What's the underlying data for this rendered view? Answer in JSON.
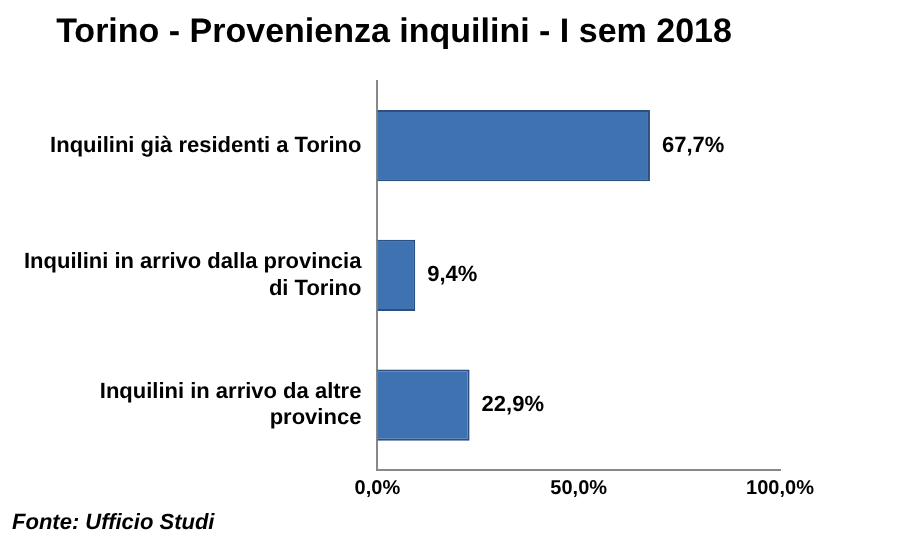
{
  "chart_data": {
    "type": "bar",
    "orientation": "horizontal",
    "title": "Torino - Provenienza inquilini - I sem 2018",
    "categories": [
      "Inquilini già residenti a Torino",
      "Inquilini in arrivo dalla provincia di Torino",
      "Inquilini in arrivo da altre province"
    ],
    "values": [
      67.7,
      9.4,
      22.9
    ],
    "value_labels": [
      "67,7%",
      "9,4%",
      "22,9%"
    ],
    "color": "#3f72b0",
    "xlim": [
      0,
      100
    ],
    "xticks": [
      {
        "value": 0,
        "label": "0,0%"
      },
      {
        "value": 50,
        "label": "50,0%"
      },
      {
        "value": 100,
        "label": "100,0%"
      }
    ],
    "grid": false,
    "legend": false,
    "annotations": [
      "Fonte: Ufficio Studi"
    ]
  }
}
